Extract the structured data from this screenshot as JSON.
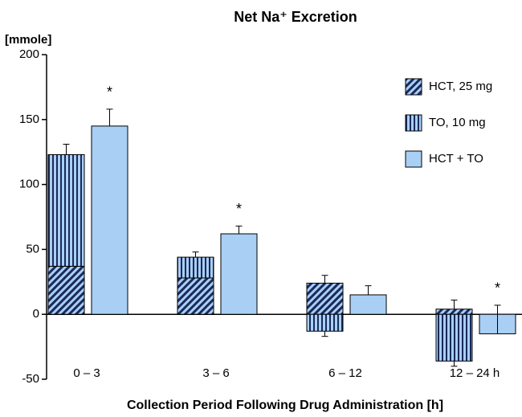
{
  "chart_data": {
    "type": "stacked_bar_with_comparison",
    "title": "Net Na⁺ Excretion",
    "ylabel": "[mmole]",
    "xlabel": "Collection Period Following Drug Administration [h]",
    "categories": [
      "0 – 3",
      "3 – 6",
      "6 – 12",
      "12 – 24 h"
    ],
    "ylim": [
      -50,
      200
    ],
    "yticks": [
      -50,
      0,
      50,
      100,
      150,
      200
    ],
    "series": [
      {
        "name": "HCT, 25 mg",
        "color": "#a9cff5",
        "pattern": "diagonal",
        "stack": "a",
        "values": [
          37,
          28,
          24,
          4
        ],
        "errors": [
          null,
          null,
          6,
          7
        ]
      },
      {
        "name": "TO, 10 mg",
        "color": "#a9cff5",
        "pattern": "vertical",
        "stack": "a",
        "values": [
          86,
          16,
          -13,
          -36
        ],
        "errors": [
          8,
          4,
          4,
          4
        ]
      },
      {
        "name": "HCT + TO",
        "color": "#a9cff5",
        "pattern": "none",
        "stack": "b",
        "values": [
          145,
          62,
          15,
          -15
        ],
        "errors": [
          13,
          6,
          7,
          22
        ]
      }
    ],
    "significance": [
      "*",
      "*",
      null,
      "*"
    ],
    "legend": "upper right"
  }
}
